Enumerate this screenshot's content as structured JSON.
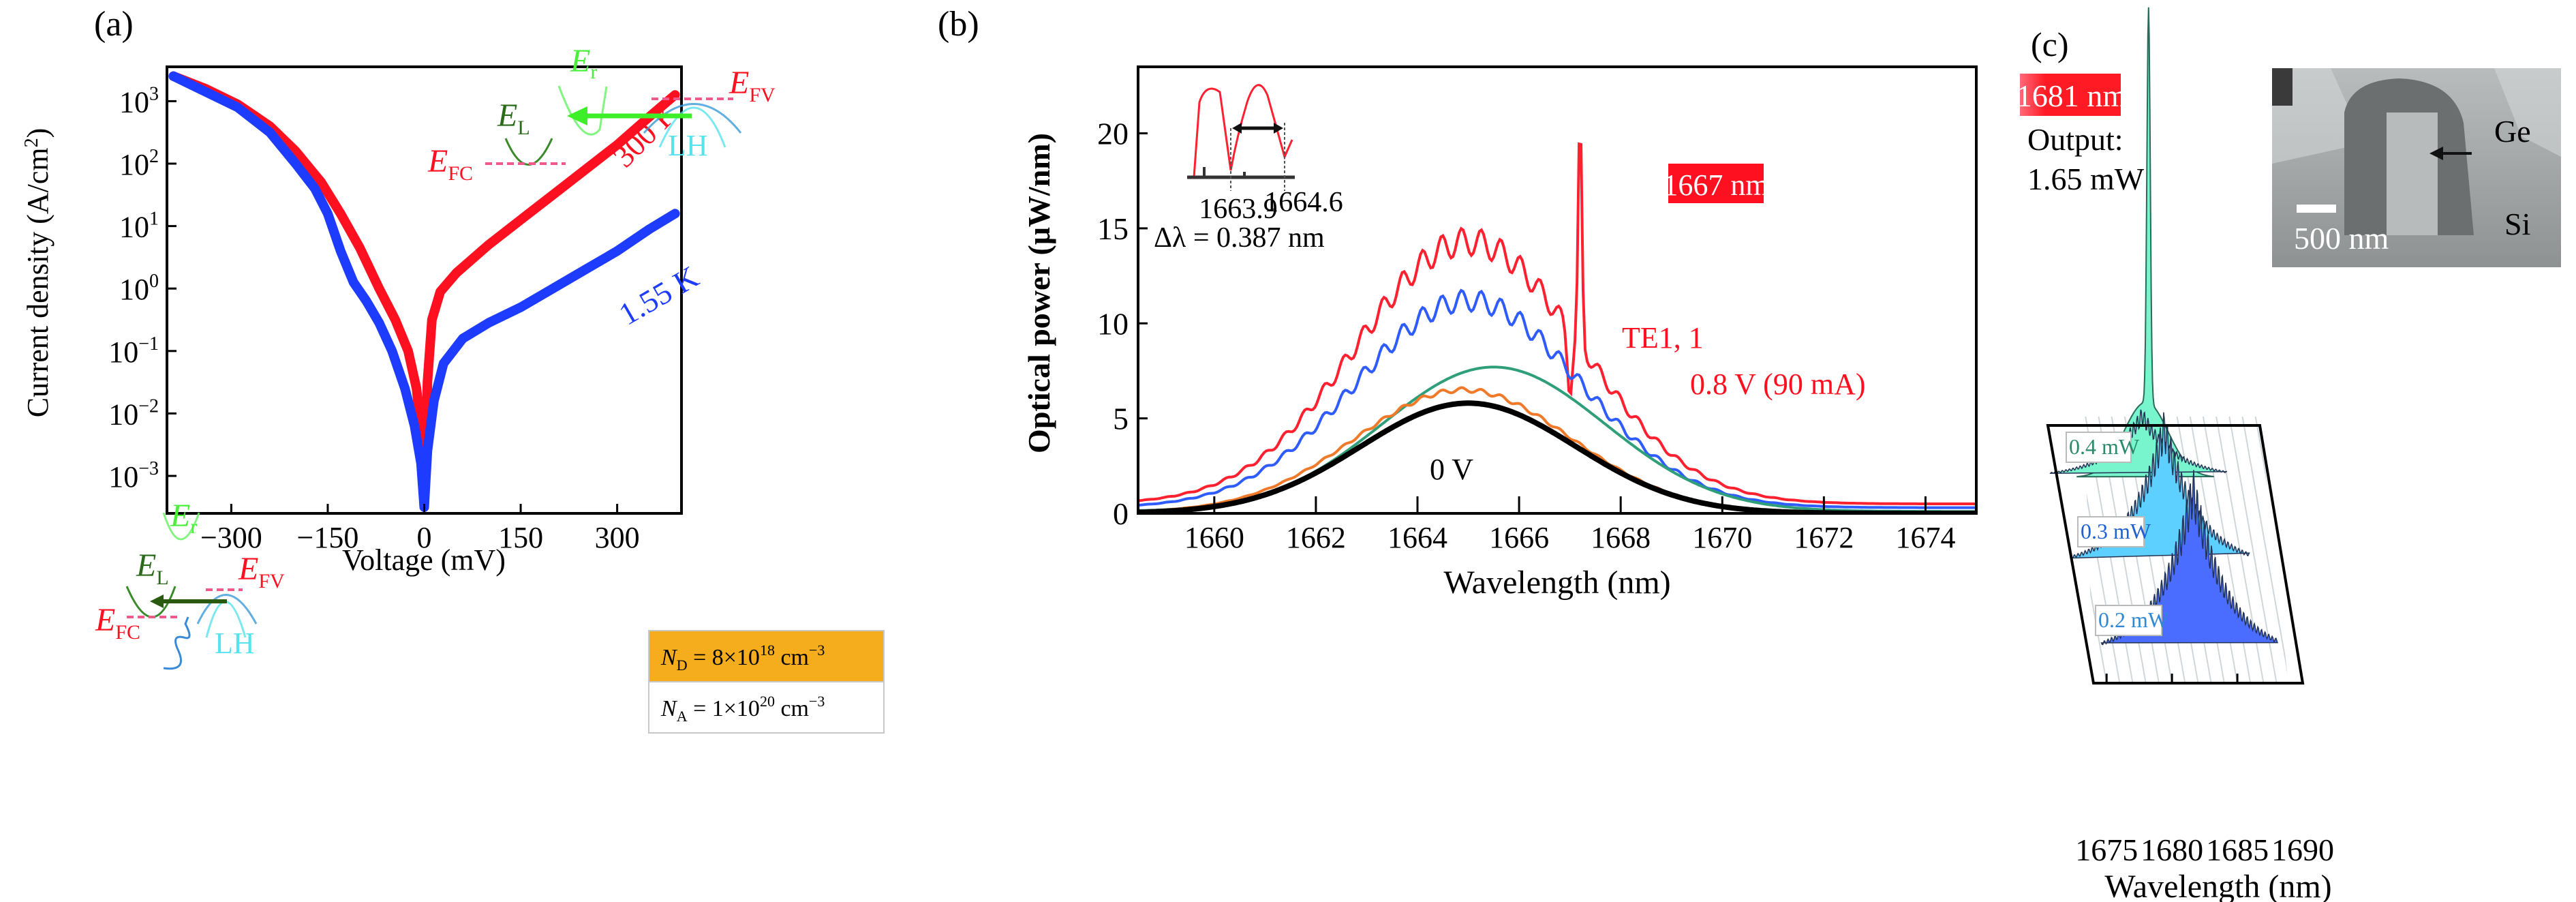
{
  "chart_data": [
    {
      "panel": "(a)",
      "type": "line",
      "xlabel": "Voltage (mV)",
      "ylabel": "Current density (A/cm²)",
      "yscale": "log",
      "xlim": [
        -400,
        400
      ],
      "ylim_exponent": [
        -3.6,
        3.55
      ],
      "xticks": [
        -300,
        -150,
        0,
        150,
        300
      ],
      "xtick_labels": [
        "−300",
        "−150",
        "0",
        "150",
        "300"
      ],
      "yticks_exponent": [
        3,
        2,
        1,
        0,
        -1,
        -2,
        -3
      ],
      "ytick_labels": [
        "10³",
        "10²",
        "10¹",
        "10⁰",
        "10⁻¹",
        "10⁻²",
        "10⁻³"
      ],
      "series": [
        {
          "name": "300 K",
          "color": "#ff1020",
          "x": [
            -390,
            -340,
            -290,
            -240,
            -200,
            -160,
            -130,
            -100,
            -70,
            -45,
            -25,
            -12,
            -5,
            0,
            5,
            12,
            25,
            50,
            100,
            150,
            200,
            250,
            300,
            350,
            390
          ],
          "log10_y": [
            3.4,
            3.2,
            2.95,
            2.6,
            2.2,
            1.7,
            1.2,
            0.65,
            0.0,
            -0.5,
            -1.0,
            -1.6,
            -2.3,
            -3.5,
            -1.5,
            -0.5,
            -0.05,
            0.25,
            0.7,
            1.1,
            1.5,
            1.9,
            2.3,
            2.75,
            3.1
          ]
        },
        {
          "name": "1.55 K",
          "color": "#1e3cff",
          "x": [
            -390,
            -340,
            -290,
            -240,
            -200,
            -170,
            -150,
            -130,
            -110,
            -90,
            -70,
            -50,
            -30,
            -15,
            -5,
            0,
            5,
            15,
            30,
            60,
            100,
            150,
            200,
            250,
            300,
            350,
            390
          ],
          "log10_y": [
            3.4,
            3.15,
            2.9,
            2.5,
            2.0,
            1.6,
            1.2,
            0.6,
            0.1,
            -0.2,
            -0.55,
            -1.0,
            -1.6,
            -2.2,
            -2.8,
            -3.5,
            -2.6,
            -1.8,
            -1.2,
            -0.8,
            -0.55,
            -0.3,
            0.0,
            0.3,
            0.6,
            0.95,
            1.2
          ]
        }
      ],
      "annotations": [
        "300 K",
        "1.55 K"
      ],
      "insets": {
        "band_top": {
          "labels": [
            "E_r",
            "E_L",
            "E_FC",
            "E_FV",
            "LH"
          ]
        },
        "band_bottom": {
          "labels": [
            "E_r",
            "E_L",
            "E_FC",
            "E_FV",
            "LH"
          ]
        }
      },
      "doping_table": [
        {
          "label": "N_D = 8×10¹⁸ cm⁻³",
          "bg": "#f5ad1e"
        },
        {
          "label": "N_A = 1×10²⁰ cm⁻³",
          "bg": "#ffffff"
        }
      ]
    },
    {
      "panel": "(b)",
      "type": "line",
      "xlabel": "Wavelength (nm)",
      "ylabel": "Optical power (μW/nm)",
      "xlim": [
        1658.5,
        1675
      ],
      "ylim": [
        0,
        23.5
      ],
      "xticks": [
        1660,
        1662,
        1664,
        1666,
        1668,
        1670,
        1672,
        1674
      ],
      "yticks": [
        0,
        5,
        10,
        15,
        20
      ],
      "series": [
        {
          "name": "0.8 V (90 mA)",
          "color": "#ff2030",
          "peak_center": 1665.0,
          "peak": 14.3,
          "base": 0.5,
          "width": 3.1,
          "ripple": 0.9,
          "spike_nm": 1667.2,
          "spike_value": 21.2
        },
        {
          "name": "blue",
          "color": "#2f5cff",
          "peak_center": 1665.0,
          "peak": 11.2,
          "base": 0.3,
          "width": 3.1,
          "ripple": 0.7
        },
        {
          "name": "green",
          "color": "#2f9f7a",
          "peak_center": 1665.5,
          "peak": 7.7,
          "base": 0.1,
          "width": 3.1,
          "ripple": 0
        },
        {
          "name": "orange",
          "color": "#f07a2a",
          "peak_center": 1664.9,
          "peak": 6.5,
          "base": 0.05,
          "width": 3.0,
          "ripple": 0.15
        },
        {
          "name": "0 V",
          "color": "#000000",
          "peak_center": 1665.0,
          "peak": 5.8,
          "base": 0.0,
          "width": 3.0,
          "ripple": 0
        }
      ],
      "annotations": {
        "lasing_badge": "1667 nm",
        "mode_label": "TE1, 1",
        "bias_label": "0.8 V (90 mA)",
        "zero_bias_label": "0 V"
      },
      "inset": {
        "tick_labels": [
          "1663.9",
          "1664.6"
        ],
        "fsr_label": "Δλ = 0.387 nm"
      }
    },
    {
      "panel": "(c)",
      "type": "area",
      "xlabel": "Wavelength (nm)",
      "xlim": [
        1674,
        1690
      ],
      "xticks": [
        1675,
        1680,
        1685,
        1690
      ],
      "series": [
        {
          "name": "0.2 mW",
          "color": "#4a6cff",
          "label_color": "#2f88d6",
          "center": 1682,
          "width": 6
        },
        {
          "name": "0.3 mW",
          "color": "#5ed0ff",
          "label_color": "#2060d0",
          "center": 1681,
          "width": 7
        },
        {
          "name": "0.4 mW",
          "color": "#78f5cc",
          "label_color": "#2a8a6a",
          "center": 1680.5,
          "width": 7
        },
        {
          "name": "1.65 mW",
          "color": "#78f5cc",
          "center": 1681,
          "width": 2
        }
      ],
      "annotations": {
        "lasing_badge": "1681 nm",
        "output_label": "Output:",
        "output_value": "1.65 mW"
      },
      "sem_inset": {
        "labels": [
          "Ge",
          "Si",
          "500 nm"
        ]
      }
    }
  ],
  "panel_labels": [
    "(a)",
    "(b)",
    "(c)"
  ],
  "text": {
    "a": {
      "xlabel": "Voltage (mV)",
      "ylabel": "Current density (A/cm",
      "ylabel_sup": "2",
      "ylabel_end": ")",
      "k300": "300 K",
      "k155": "1.55 K",
      "E": "E",
      "sub_r": "r",
      "sub_L": "L",
      "sub_FC": "FC",
      "sub_FV": "FV",
      "LH": "LH",
      "nd_pre": "N",
      "nd_sub": "D",
      "nd_mid": " = 8×10",
      "nd_exp": "18",
      "nd_unit": " cm",
      "nd_unit_exp": "−3",
      "na_pre": "N",
      "na_sub": "A",
      "na_mid": " = 1×10",
      "na_exp": "20",
      "na_unit": " cm",
      "na_unit_exp": "−3",
      "ytick_base": "10",
      "ytick_exps": [
        "3",
        "2",
        "1",
        "0",
        "−1",
        "−2",
        "−3"
      ]
    },
    "b": {
      "xlabel": "Wavelength (nm)",
      "ylabel": "Optical power (μW/nm)",
      "badge": "1667 nm",
      "te": "TE1, 1",
      "bias": "0.8 V (90 mA)",
      "zero": "0 V",
      "inset_t1": "1663.9",
      "inset_t2": "1664.6",
      "fsr": "Δλ = 0.387 nm"
    },
    "c": {
      "badge": "1681 nm",
      "output": "Output:",
      "output_val": "1.65 mW",
      "ge": "Ge",
      "si": "Si",
      "scale": "500 nm",
      "p04": "0.4 mW",
      "p03": "0.3 mW",
      "p02": "0.2 mW",
      "xlabel": "Wavelength (nm)"
    }
  }
}
